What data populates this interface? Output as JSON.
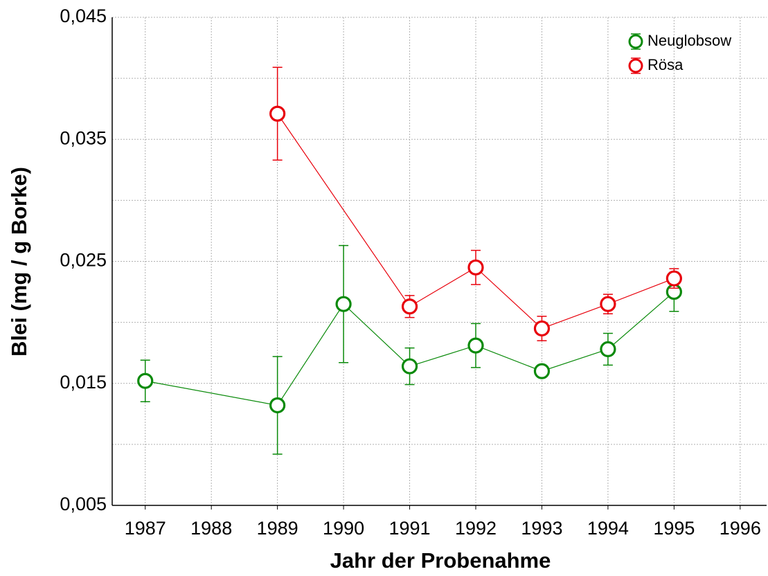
{
  "chart_data": {
    "type": "line",
    "xlabel": "Jahr der Probenahme",
    "ylabel": "Blei (mg / g Borke)",
    "xlim": [
      1986.5,
      1996.4
    ],
    "xticks": [
      1987,
      1988,
      1989,
      1990,
      1991,
      1992,
      1993,
      1994,
      1995,
      1996
    ],
    "ylim": [
      0.005,
      0.045
    ],
    "yticks": [
      {
        "value": 0.005,
        "label": "0,005"
      },
      {
        "value": 0.015,
        "label": "0,015"
      },
      {
        "value": 0.025,
        "label": "0,025"
      },
      {
        "value": 0.035,
        "label": "0,035"
      },
      {
        "value": 0.045,
        "label": "0,045"
      }
    ],
    "yminor": [
      0.01,
      0.02,
      0.03,
      0.04
    ],
    "grid": true,
    "legend": "top-right",
    "series": [
      {
        "name": "Neuglobsow",
        "color": "#0a8a0a",
        "x": [
          1987,
          1989,
          1990,
          1991,
          1992,
          1993,
          1994,
          1995
        ],
        "values": [
          0.0152,
          0.0132,
          0.0215,
          0.0164,
          0.0181,
          0.016,
          0.0178,
          0.0225
        ],
        "errors": [
          0.0017,
          0.004,
          0.0048,
          0.0015,
          0.0018,
          0.0004,
          0.0013,
          0.0016
        ]
      },
      {
        "name": "Rösa",
        "color": "#e8000b",
        "x": [
          1989,
          1991,
          1992,
          1993,
          1994,
          1995
        ],
        "values": [
          0.0371,
          0.0213,
          0.0245,
          0.0195,
          0.0215,
          0.0236
        ],
        "errors": [
          0.0038,
          0.0009,
          0.0014,
          0.001,
          0.0008,
          0.0008
        ]
      }
    ]
  }
}
